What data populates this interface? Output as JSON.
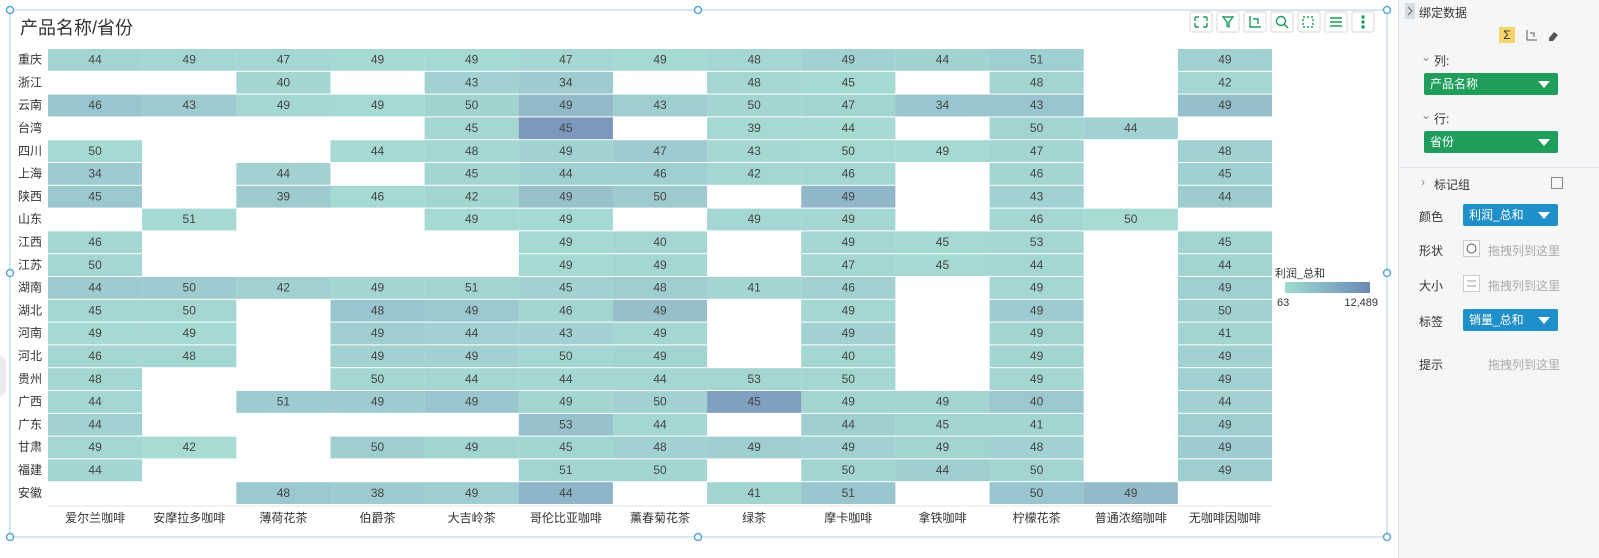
{
  "chart_data": {
    "type": "heatmap",
    "title": "产品名称/省份",
    "x": [
      "爱尔兰咖啡",
      "安摩拉多咖啡",
      "薄荷花茶",
      "伯爵茶",
      "大吉岭茶",
      "哥伦比亚咖啡",
      "薰春菊花茶",
      "绿茶",
      "摩卡咖啡",
      "拿铁咖啡",
      "柠檬花茶",
      "普通浓缩咖啡",
      "无咖啡因咖啡"
    ],
    "y": [
      "重庆",
      "浙江",
      "云南",
      "台湾",
      "四川",
      "上海",
      "陕西",
      "山东",
      "江西",
      "江苏",
      "湖南",
      "湖北",
      "河南",
      "河北",
      "贵州",
      "广西",
      "广东",
      "甘肃",
      "福建",
      "安徽"
    ],
    "values": [
      [
        44,
        49,
        47,
        49,
        49,
        47,
        49,
        48,
        49,
        44,
        51,
        null,
        49
      ],
      [
        null,
        null,
        40,
        null,
        43,
        34,
        null,
        48,
        45,
        null,
        48,
        null,
        42
      ],
      [
        46,
        43,
        49,
        49,
        50,
        49,
        43,
        50,
        47,
        34,
        43,
        null,
        49
      ],
      [
        null,
        null,
        null,
        null,
        45,
        45,
        null,
        39,
        44,
        null,
        50,
        44,
        null
      ],
      [
        50,
        null,
        null,
        44,
        48,
        49,
        47,
        43,
        50,
        49,
        47,
        null,
        48
      ],
      [
        34,
        null,
        44,
        null,
        45,
        44,
        46,
        42,
        46,
        null,
        46,
        null,
        45
      ],
      [
        45,
        null,
        39,
        46,
        42,
        49,
        50,
        null,
        49,
        null,
        43,
        null,
        44
      ],
      [
        null,
        51,
        null,
        null,
        49,
        49,
        null,
        49,
        49,
        null,
        46,
        50,
        null
      ],
      [
        46,
        null,
        null,
        null,
        null,
        49,
        40,
        null,
        49,
        45,
        53,
        null,
        45
      ],
      [
        50,
        null,
        null,
        null,
        null,
        49,
        49,
        null,
        47,
        45,
        44,
        null,
        44
      ],
      [
        44,
        50,
        42,
        49,
        51,
        45,
        48,
        41,
        46,
        null,
        49,
        null,
        49
      ],
      [
        45,
        50,
        null,
        48,
        49,
        46,
        49,
        null,
        49,
        null,
        49,
        null,
        50
      ],
      [
        49,
        49,
        null,
        49,
        44,
        43,
        49,
        null,
        49,
        null,
        49,
        null,
        41
      ],
      [
        46,
        48,
        null,
        49,
        49,
        50,
        49,
        null,
        40,
        null,
        49,
        null,
        49
      ],
      [
        48,
        null,
        null,
        50,
        44,
        44,
        44,
        53,
        50,
        null,
        49,
        null,
        49
      ],
      [
        44,
        null,
        51,
        49,
        49,
        49,
        50,
        45,
        49,
        49,
        40,
        null,
        44
      ],
      [
        44,
        null,
        null,
        null,
        null,
        53,
        44,
        null,
        44,
        45,
        41,
        null,
        49
      ],
      [
        49,
        42,
        null,
        50,
        49,
        45,
        48,
        49,
        49,
        49,
        48,
        null,
        49
      ],
      [
        44,
        null,
        null,
        null,
        null,
        51,
        50,
        null,
        50,
        44,
        50,
        null,
        49
      ],
      [
        null,
        null,
        48,
        38,
        49,
        44,
        null,
        41,
        51,
        null,
        50,
        49,
        null
      ]
    ],
    "color_values": [
      [
        1800,
        1500,
        1500,
        1200,
        1200,
        1500,
        1200,
        1600,
        2500,
        2200,
        2800,
        null,
        2500
      ],
      [
        null,
        null,
        1800,
        null,
        2500,
        3500,
        null,
        1500,
        1200,
        null,
        2000,
        null,
        1500
      ],
      [
        4500,
        3500,
        1500,
        1200,
        2200,
        6500,
        3000,
        1800,
        2000,
        4500,
        4500,
        null,
        5500
      ],
      [
        null,
        null,
        null,
        null,
        1500,
        12489,
        null,
        1200,
        1000,
        null,
        2000,
        2500,
        null
      ],
      [
        1200,
        null,
        null,
        1200,
        1500,
        2500,
        3500,
        1300,
        1200,
        1200,
        1800,
        null,
        2500
      ],
      [
        3500,
        null,
        2500,
        null,
        1800,
        2800,
        2800,
        1500,
        1500,
        null,
        1800,
        null,
        2800
      ],
      [
        4000,
        null,
        3500,
        1200,
        1800,
        5000,
        3500,
        null,
        7000,
        null,
        2500,
        null,
        3500
      ],
      [
        null,
        1200,
        null,
        null,
        1200,
        1200,
        null,
        1500,
        1500,
        null,
        1500,
        800,
        null
      ],
      [
        1500,
        null,
        null,
        null,
        null,
        1200,
        1500,
        null,
        1500,
        1200,
        1500,
        null,
        2000
      ],
      [
        1500,
        null,
        null,
        null,
        null,
        1200,
        1500,
        null,
        1500,
        1200,
        1500,
        null,
        2000
      ],
      [
        3500,
        3500,
        2500,
        1800,
        2000,
        2500,
        3000,
        1800,
        2500,
        null,
        1500,
        null,
        2800
      ],
      [
        1500,
        1500,
        null,
        4500,
        4000,
        2000,
        5500,
        null,
        1500,
        null,
        3500,
        null,
        2500
      ],
      [
        1200,
        1200,
        null,
        3000,
        2500,
        2500,
        1500,
        null,
        2500,
        null,
        2000,
        null,
        2000
      ],
      [
        1500,
        1500,
        null,
        2500,
        2500,
        1500,
        2000,
        null,
        1500,
        null,
        2000,
        null,
        2500
      ],
      [
        1500,
        null,
        null,
        1500,
        1500,
        1500,
        1500,
        1500,
        1500,
        null,
        1500,
        null,
        2500
      ],
      [
        1500,
        null,
        3500,
        3500,
        4500,
        1800,
        2500,
        11000,
        2000,
        2000,
        4000,
        null,
        2500
      ],
      [
        2500,
        null,
        null,
        null,
        null,
        5000,
        1500,
        null,
        3000,
        1800,
        1800,
        null,
        3000
      ],
      [
        1500,
        800,
        null,
        3000,
        2000,
        2000,
        2500,
        3000,
        2500,
        2000,
        2500,
        null,
        3500
      ],
      [
        1800,
        null,
        null,
        null,
        null,
        2000,
        1800,
        null,
        2000,
        3000,
        2000,
        null,
        3000
      ],
      [
        null,
        null,
        4000,
        3500,
        3000,
        7500,
        null,
        2000,
        4500,
        null,
        4500,
        6500,
        null
      ]
    ],
    "legend_title": "利润_总和",
    "colorlim": [
      63,
      12489
    ],
    "colorticks": [
      63,
      {
        "value": 12489,
        "label": "12,489"
      }
    ],
    "colors": [
      "#8dd5c8",
      "#4f74a8"
    ]
  },
  "panel": {
    "title": "绑定数据",
    "columns_label": "列:",
    "columns_field": "产品名称",
    "rows_label": "行:",
    "rows_field": "省份",
    "marks_label": "标记组",
    "color_label": "颜色",
    "color_field": "利润_总和",
    "shape_label": "形状",
    "shape_placeholder": "拖拽列到这里",
    "size_label": "大小",
    "size_placeholder": "拖拽列到这里",
    "label_label": "标签",
    "label_field": "销量_总和",
    "tooltip_label": "提示",
    "tooltip_placeholder": "拖拽列到这里"
  }
}
